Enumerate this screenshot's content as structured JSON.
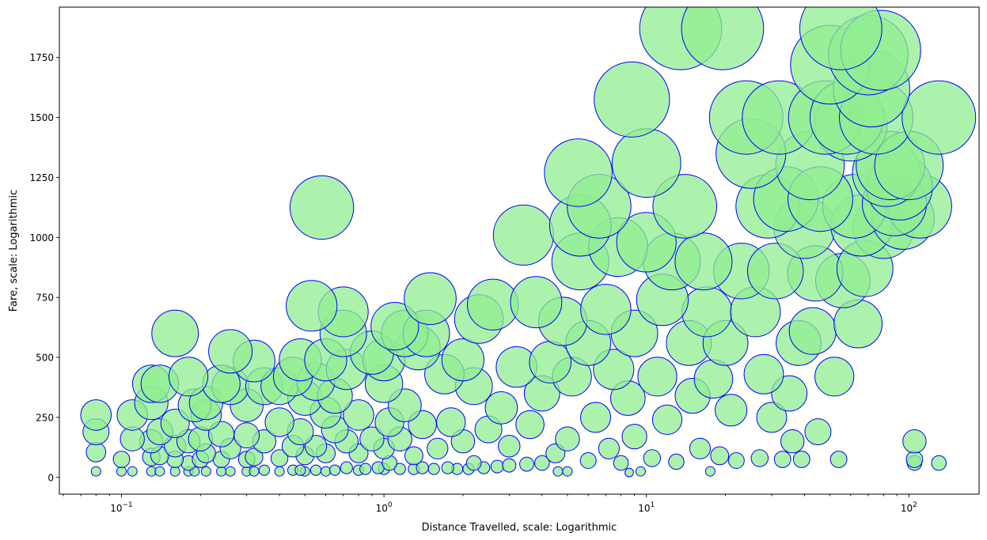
{
  "chart_data": {
    "type": "scatter",
    "title": "",
    "xlabel": "Distance Travelled, scale: Logarithmic",
    "ylabel": "Fare, scale: Logarithmic",
    "x_scale": "log",
    "xlim": [
      0.058,
      185
    ],
    "ylim": [
      -70,
      1960
    ],
    "x_ticks": [
      {
        "value": 0.1,
        "base": "10",
        "exp": "−1"
      },
      {
        "value": 1,
        "base": "10",
        "exp": "0"
      },
      {
        "value": 10,
        "base": "10",
        "exp": "1"
      },
      {
        "value": 100,
        "base": "10",
        "exp": "2"
      }
    ],
    "y_ticks": [
      {
        "value": 0,
        "label": "0"
      },
      {
        "value": 250,
        "label": "250"
      },
      {
        "value": 500,
        "label": "500"
      },
      {
        "value": 750,
        "label": "750"
      },
      {
        "value": 1000,
        "label": "1000"
      },
      {
        "value": 1250,
        "label": "1250"
      },
      {
        "value": 1500,
        "label": "1500"
      },
      {
        "value": 1750,
        "label": "1750"
      }
    ],
    "grid": false,
    "legend": "none",
    "marker": {
      "fill": "#90EE90",
      "alpha": 0.75,
      "edge": "#0000FF",
      "size_encodes": "fare"
    },
    "points": [
      [
        0.08,
        25
      ],
      [
        0.08,
        190
      ],
      [
        0.08,
        260
      ],
      [
        0.08,
        105
      ],
      [
        0.1,
        25
      ],
      [
        0.1,
        75
      ],
      [
        0.11,
        25
      ],
      [
        0.11,
        160
      ],
      [
        0.11,
        260
      ],
      [
        0.13,
        25
      ],
      [
        0.13,
        85
      ],
      [
        0.13,
        150
      ],
      [
        0.13,
        310
      ],
      [
        0.13,
        390
      ],
      [
        0.14,
        25
      ],
      [
        0.14,
        90
      ],
      [
        0.14,
        190
      ],
      [
        0.14,
        390
      ],
      [
        0.16,
        25
      ],
      [
        0.16,
        75
      ],
      [
        0.16,
        130
      ],
      [
        0.16,
        225
      ],
      [
        0.16,
        600
      ],
      [
        0.18,
        25
      ],
      [
        0.18,
        60
      ],
      [
        0.18,
        150
      ],
      [
        0.18,
        420
      ],
      [
        0.19,
        25
      ],
      [
        0.19,
        300
      ],
      [
        0.2,
        75
      ],
      [
        0.2,
        160
      ],
      [
        0.21,
        25
      ],
      [
        0.21,
        100
      ],
      [
        0.21,
        260
      ],
      [
        0.21,
        310
      ],
      [
        0.24,
        25
      ],
      [
        0.24,
        75
      ],
      [
        0.24,
        180
      ],
      [
        0.24,
        390
      ],
      [
        0.26,
        25
      ],
      [
        0.26,
        120
      ],
      [
        0.26,
        380
      ],
      [
        0.26,
        525
      ],
      [
        0.3,
        25
      ],
      [
        0.3,
        75
      ],
      [
        0.3,
        175
      ],
      [
        0.3,
        300
      ],
      [
        0.32,
        25
      ],
      [
        0.32,
        85
      ],
      [
        0.32,
        485
      ],
      [
        0.35,
        30
      ],
      [
        0.35,
        150
      ],
      [
        0.35,
        380
      ],
      [
        0.4,
        25
      ],
      [
        0.4,
        80
      ],
      [
        0.4,
        230
      ],
      [
        0.4,
        380
      ],
      [
        0.45,
        30
      ],
      [
        0.45,
        130
      ],
      [
        0.45,
        420
      ],
      [
        0.48,
        30
      ],
      [
        0.48,
        190
      ],
      [
        0.48,
        490
      ],
      [
        0.5,
        25
      ],
      [
        0.5,
        90
      ],
      [
        0.5,
        330
      ],
      [
        0.53,
        715
      ],
      [
        0.55,
        30
      ],
      [
        0.55,
        130
      ],
      [
        0.55,
        400
      ],
      [
        0.58,
        1125
      ],
      [
        0.6,
        25
      ],
      [
        0.6,
        100
      ],
      [
        0.6,
        270
      ],
      [
        0.6,
        490
      ],
      [
        0.65,
        30
      ],
      [
        0.65,
        200
      ],
      [
        0.65,
        340
      ],
      [
        0.7,
        690
      ],
      [
        0.7,
        600
      ],
      [
        0.72,
        40
      ],
      [
        0.72,
        150
      ],
      [
        0.72,
        450
      ],
      [
        0.8,
        30
      ],
      [
        0.8,
        100
      ],
      [
        0.8,
        260
      ],
      [
        0.85,
        35
      ],
      [
        0.9,
        160
      ],
      [
        0.9,
        520
      ],
      [
        0.95,
        40
      ],
      [
        1.0,
        35
      ],
      [
        1.0,
        120
      ],
      [
        1.0,
        390
      ],
      [
        1.0,
        490
      ],
      [
        1.05,
        60
      ],
      [
        1.05,
        230
      ],
      [
        1.1,
        630
      ],
      [
        1.15,
        35
      ],
      [
        1.15,
        160
      ],
      [
        1.2,
        300
      ],
      [
        1.2,
        600
      ],
      [
        1.3,
        35
      ],
      [
        1.3,
        90
      ],
      [
        1.35,
        540
      ],
      [
        1.4,
        40
      ],
      [
        1.4,
        220
      ],
      [
        1.45,
        600
      ],
      [
        1.5,
        745
      ],
      [
        1.55,
        35
      ],
      [
        1.6,
        120
      ],
      [
        1.7,
        430
      ],
      [
        1.75,
        40
      ],
      [
        1.8,
        230
      ],
      [
        1.9,
        35
      ],
      [
        2.0,
        150
      ],
      [
        2.0,
        490
      ],
      [
        2.1,
        35
      ],
      [
        2.2,
        60
      ],
      [
        2.2,
        380
      ],
      [
        2.3,
        660
      ],
      [
        2.4,
        40
      ],
      [
        2.5,
        200
      ],
      [
        2.6,
        720
      ],
      [
        2.7,
        45
      ],
      [
        2.8,
        290
      ],
      [
        3.0,
        50
      ],
      [
        3.0,
        130
      ],
      [
        3.2,
        460
      ],
      [
        3.4,
        1010
      ],
      [
        3.5,
        55
      ],
      [
        3.6,
        220
      ],
      [
        3.8,
        730
      ],
      [
        4.0,
        60
      ],
      [
        4.0,
        350
      ],
      [
        4.3,
        480
      ],
      [
        4.5,
        100
      ],
      [
        4.6,
        25
      ],
      [
        4.8,
        650
      ],
      [
        5.0,
        25
      ],
      [
        5.0,
        160
      ],
      [
        5.2,
        420
      ],
      [
        5.5,
        1270
      ],
      [
        5.6,
        900
      ],
      [
        5.6,
        1050
      ],
      [
        6.0,
        70
      ],
      [
        6.0,
        560
      ],
      [
        6.4,
        250
      ],
      [
        6.6,
        1130
      ],
      [
        7.0,
        700
      ],
      [
        7.2,
        120
      ],
      [
        7.5,
        450
      ],
      [
        7.8,
        960
      ],
      [
        8.0,
        60
      ],
      [
        8.5,
        330
      ],
      [
        8.6,
        20
      ],
      [
        8.8,
        1575
      ],
      [
        9.0,
        600
      ],
      [
        9.0,
        170
      ],
      [
        9.5,
        25
      ],
      [
        10.0,
        1310
      ],
      [
        10.0,
        980
      ],
      [
        10.5,
        80
      ],
      [
        11.0,
        420
      ],
      [
        11.5,
        740
      ],
      [
        12.0,
        240
      ],
      [
        12.5,
        900
      ],
      [
        13.0,
        65
      ],
      [
        13.5,
        1870
      ],
      [
        14.0,
        1130
      ],
      [
        14.5,
        560
      ],
      [
        15.0,
        340
      ],
      [
        16.0,
        120
      ],
      [
        16.5,
        900
      ],
      [
        17.0,
        690
      ],
      [
        17.5,
        25
      ],
      [
        18.0,
        410
      ],
      [
        19.0,
        90
      ],
      [
        19.5,
        1870
      ],
      [
        20.0,
        560
      ],
      [
        21.0,
        280
      ],
      [
        22.0,
        70
      ],
      [
        23.0,
        860
      ],
      [
        24.0,
        1500
      ],
      [
        25.0,
        1350
      ],
      [
        26.0,
        690
      ],
      [
        27.0,
        80
      ],
      [
        28.0,
        430
      ],
      [
        29.0,
        1130
      ],
      [
        30.0,
        250
      ],
      [
        31.0,
        860
      ],
      [
        32.0,
        1500
      ],
      [
        33.0,
        75
      ],
      [
        34.0,
        1160
      ],
      [
        35.0,
        350
      ],
      [
        36.0,
        150
      ],
      [
        38.0,
        560
      ],
      [
        39.0,
        75
      ],
      [
        40.0,
        1040
      ],
      [
        42.0,
        1300
      ],
      [
        43.0,
        610
      ],
      [
        44.0,
        850
      ],
      [
        45.0,
        190
      ],
      [
        46.0,
        1160
      ],
      [
        48.0,
        1500
      ],
      [
        50.0,
        1720
      ],
      [
        52.0,
        420
      ],
      [
        54.0,
        75
      ],
      [
        55.0,
        1870
      ],
      [
        56.0,
        820
      ],
      [
        58.0,
        1500
      ],
      [
        60.0,
        1470
      ],
      [
        62.0,
        1130
      ],
      [
        64.0,
        640
      ],
      [
        66.0,
        1050
      ],
      [
        68.0,
        870
      ],
      [
        70.0,
        1760
      ],
      [
        72.0,
        1620
      ],
      [
        75.0,
        1500
      ],
      [
        78.0,
        1780
      ],
      [
        80.0,
        1040
      ],
      [
        82.0,
        1270
      ],
      [
        85.0,
        1300
      ],
      [
        88.0,
        1140
      ],
      [
        92.0,
        1210
      ],
      [
        95.0,
        1080
      ],
      [
        100.0,
        1300
      ],
      [
        105.0,
        150
      ],
      [
        105.0,
        75
      ],
      [
        105.0,
        60
      ],
      [
        110.0,
        1130
      ],
      [
        130.0,
        1500
      ],
      [
        130.0,
        60
      ]
    ]
  }
}
